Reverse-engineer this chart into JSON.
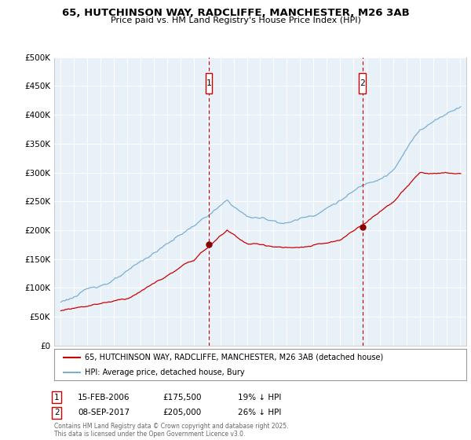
{
  "title": "65, HUTCHINSON WAY, RADCLIFFE, MANCHESTER, M26 3AB",
  "subtitle": "Price paid vs. HM Land Registry's House Price Index (HPI)",
  "legend_line1": "65, HUTCHINSON WAY, RADCLIFFE, MANCHESTER, M26 3AB (detached house)",
  "legend_line2": "HPI: Average price, detached house, Bury",
  "annotation1": {
    "label": "1",
    "date": "15-FEB-2006",
    "price": "£175,500",
    "note": "19% ↓ HPI",
    "year": 2006.12,
    "value": 175500
  },
  "annotation2": {
    "label": "2",
    "date": "08-SEP-2017",
    "price": "£205,000",
    "note": "26% ↓ HPI",
    "year": 2017.69,
    "value": 205000
  },
  "red_color": "#cc0000",
  "blue_color": "#7ab0d4",
  "dot_color": "#8b0000",
  "background_color": "#e8f0f8",
  "grid_color": "#ffffff",
  "ylim": [
    0,
    500000
  ],
  "xlim_start": 1994.5,
  "xlim_end": 2025.5,
  "footer": "Contains HM Land Registry data © Crown copyright and database right 2025.\nThis data is licensed under the Open Government Licence v3.0."
}
